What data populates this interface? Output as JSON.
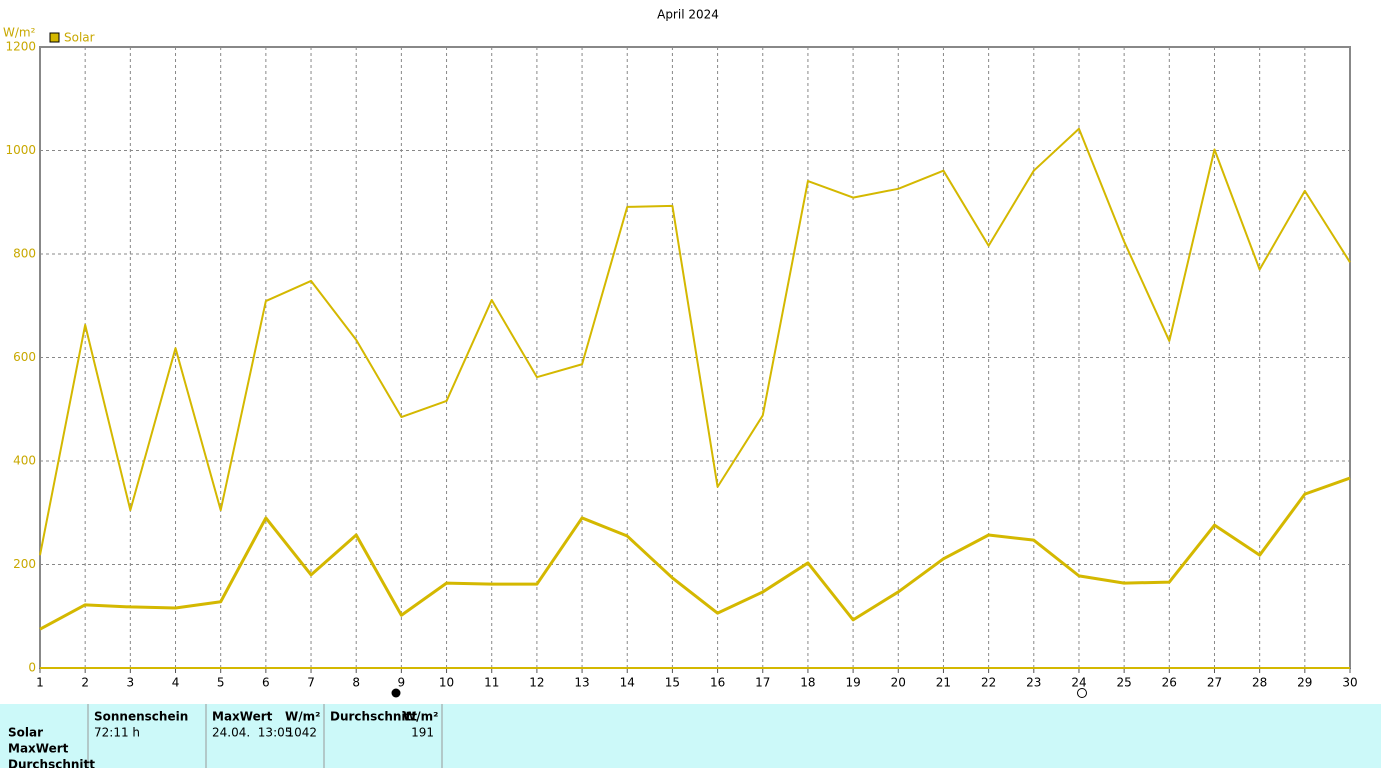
{
  "chart_data": {
    "type": "line",
    "title": "April 2024",
    "y_unit": "W/m²",
    "legend": "Solar",
    "categories": [
      1,
      2,
      3,
      4,
      5,
      6,
      7,
      8,
      9,
      10,
      11,
      12,
      13,
      14,
      15,
      16,
      17,
      18,
      19,
      20,
      21,
      22,
      23,
      24,
      25,
      26,
      27,
      28,
      29,
      30
    ],
    "series": [
      {
        "color": "#d4b800",
        "width": 2,
        "values": [
          218,
          663,
          305,
          618,
          305,
          709,
          748,
          634,
          485,
          516,
          711,
          562,
          587,
          891,
          893,
          350,
          488,
          941,
          909,
          926,
          961,
          816,
          961,
          1042,
          824,
          632,
          1002,
          770,
          922,
          784
        ]
      },
      {
        "color": "#d4b800",
        "width": 3,
        "values": [
          75,
          122,
          118,
          116,
          128,
          290,
          180,
          257,
          102,
          164,
          162,
          162,
          290,
          255,
          174,
          106,
          147,
          203,
          93,
          147,
          211,
          257,
          247,
          178,
          164,
          166,
          276,
          218,
          336,
          367
        ]
      }
    ],
    "ylim": [
      0,
      1200
    ],
    "yticks": [
      0,
      200,
      400,
      600,
      800,
      1000,
      1200
    ],
    "grid": true
  },
  "table": {
    "columns": [
      "Sonnenschein",
      "MaxWert",
      "W/m²",
      "Durchschnitt",
      "W/m²"
    ],
    "row_labels": [
      "Solar",
      "MaxWert",
      "Durchschnitt"
    ],
    "cells": [
      "72:11 h",
      "24.04.  13:05",
      "1042",
      "191"
    ]
  }
}
